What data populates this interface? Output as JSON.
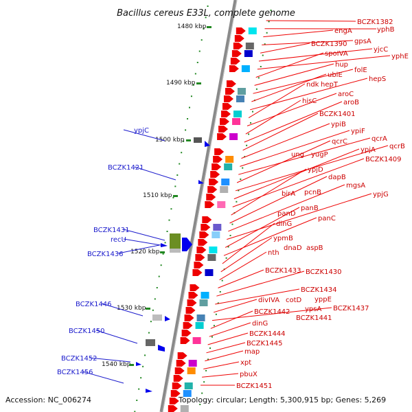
{
  "title": "Bacillus cereus E33L, complete genome",
  "footer": {
    "accession": "Accession: NC_006274",
    "stats": "Topology: circular; Length: 5,300,915 bp; Genes: 5,269"
  },
  "scale_labels": [
    "1480 kbp",
    "1490 kbp",
    "1500 kbp",
    "1510 kbp",
    "1520 kbp",
    "1530 kbp",
    "1540 kbp"
  ],
  "labels_right": [
    "BCZK1382",
    "yphB",
    "engA",
    "gpsA",
    "BCZK1390",
    "yjcC",
    "yphE",
    "spoIVA",
    "hup",
    "folE",
    "ubiE",
    "hepS",
    "ndk",
    "hepT",
    "aroC",
    "hisC",
    "aroB",
    "BCZK1401",
    "ypiB",
    "ypiF",
    "qcrA",
    "qcrC",
    "qcrB",
    "ypjA",
    "ung",
    "yugP",
    "BCZK1409",
    "ypjD",
    "dapB",
    "mgsA",
    "ypjG",
    "birA",
    "pcnB",
    "panB",
    "panD",
    "panC",
    "dinG",
    "ypmB",
    "dnaD",
    "aspB",
    "nth",
    "BCZK1433",
    "BCZK1430",
    "BCZK1434",
    "divIVA",
    "cotD",
    "yppE",
    "ypsA",
    "BCZK1437",
    "BCZK1442",
    "BCZK1441",
    "dinG",
    "BCZK1444",
    "BCZK1445",
    "map",
    "xpt",
    "pbuX",
    "BCZK1451"
  ],
  "labels_left": [
    "ypjC",
    "BCZK1421",
    "BCZK1431",
    "recU",
    "BCZK1436",
    "BCZK1446",
    "BCZK1450",
    "BCZK1452",
    "BCZK1456"
  ],
  "colors": {
    "forward": "#ee0000",
    "reverse": "#0000ee",
    "backbone": "#888888",
    "ticks": "#228822",
    "label_red": "#cc0000",
    "label_blue": "#1a1acc"
  }
}
